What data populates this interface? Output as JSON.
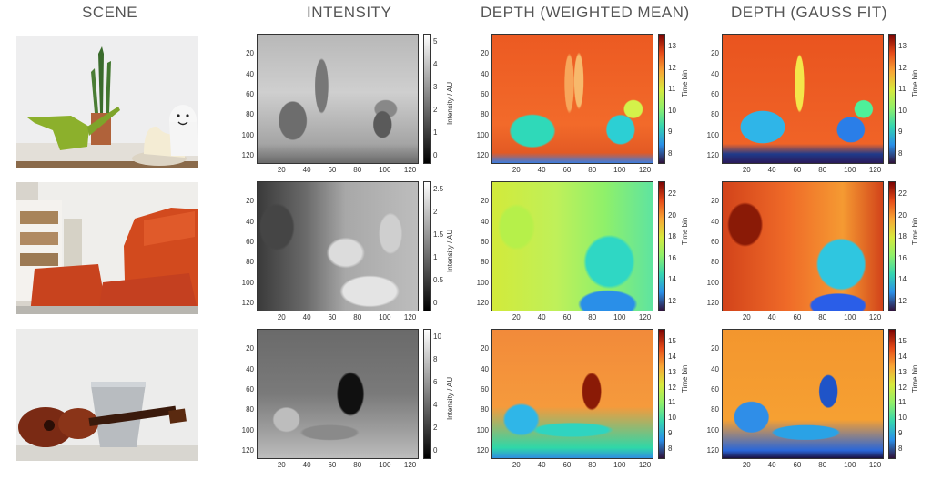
{
  "columns": {
    "scene": "SCENE",
    "intensity": "INTENSITY",
    "depth_wm": "DEPTH (WEIGHTED MEAN)",
    "depth_gauss": "DEPTH (GAUSS FIT)"
  },
  "axes": {
    "x_ticks": [
      "20",
      "40",
      "60",
      "80",
      "100",
      "120"
    ],
    "y_ticks": [
      "20",
      "40",
      "60",
      "80",
      "100",
      "120"
    ]
  },
  "intensity_label": "Intensity / AU",
  "depth_label": "Time bin",
  "rows": [
    {
      "scene": "plant-watering-can-ghost",
      "intensity_ticks": [
        "5",
        "4",
        "3",
        "2",
        "1",
        "0"
      ],
      "depth_ticks": [
        "13",
        "12",
        "11",
        "10",
        "9",
        "8"
      ]
    },
    {
      "scene": "red-armchairs-bookshelf",
      "intensity_ticks": [
        "2.5",
        "2",
        "1.5",
        "1",
        "0.5",
        "0"
      ],
      "depth_ticks": [
        "22",
        "20",
        "18",
        "16",
        "14",
        "12"
      ]
    },
    {
      "scene": "ukulele-bucket",
      "intensity_ticks": [
        "10",
        "8",
        "6",
        "4",
        "2",
        "0"
      ],
      "depth_ticks": [
        "15",
        "14",
        "13",
        "12",
        "11",
        "10",
        "9",
        "8"
      ]
    }
  ],
  "colors": {
    "jet_top": "#7a0403",
    "jet_bottom": "#30123b"
  }
}
